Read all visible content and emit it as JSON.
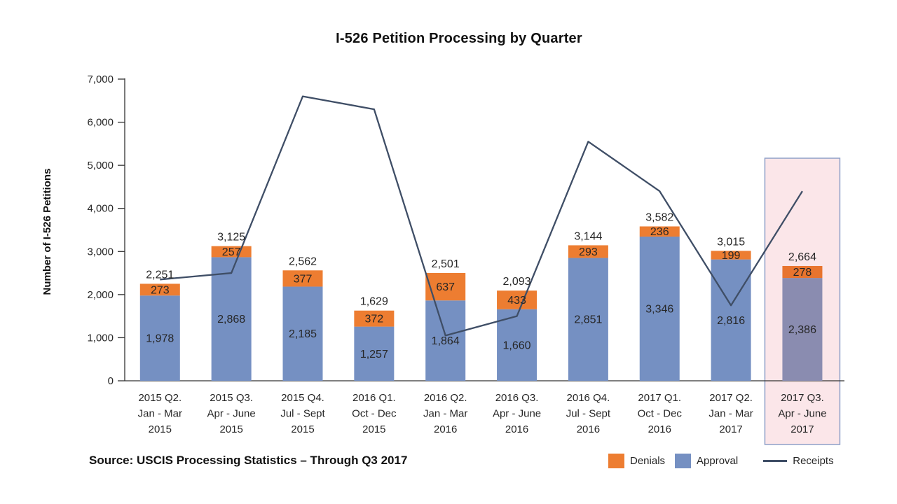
{
  "source_note": "Source: USCIS Processing Statistics – Through Q3 2017",
  "legend": {
    "denials": "Denials",
    "approval": "Approval",
    "receipts": "Receipts"
  },
  "chart_data": {
    "type": "bar",
    "subtype": "stacked-bars-with-line-overlay",
    "title": "I-526 Petition Processing by Quarter",
    "xlabel": "",
    "ylabel": "Number of I-526 Petitions",
    "ylim": [
      0,
      7000
    ],
    "ytick_step": 1000,
    "ytick_labels": [
      "0",
      "1,000",
      "2,000",
      "3,000",
      "4,000",
      "5,000",
      "6,000",
      "7,000"
    ],
    "grid": false,
    "legend_position": "bottom-right",
    "categories": [
      [
        "2015 Q2.",
        "Jan - Mar",
        "2015"
      ],
      [
        "2015 Q3.",
        "Apr - June",
        "2015"
      ],
      [
        "2015 Q4.",
        "Jul - Sept",
        "2015"
      ],
      [
        "2016 Q1.",
        "Oct - Dec",
        "2015"
      ],
      [
        "2016 Q2.",
        "Jan - Mar",
        "2016"
      ],
      [
        "2016 Q3.",
        "Apr - June",
        "2016"
      ],
      [
        "2016 Q4.",
        "Jul - Sept",
        "2016"
      ],
      [
        "2017 Q1.",
        "Oct - Dec",
        "2016"
      ],
      [
        "2017 Q2.",
        "Jan - Mar",
        "2017"
      ],
      [
        "2017 Q3.",
        "Apr - June",
        "2017"
      ]
    ],
    "series": [
      {
        "name": "Approval",
        "render": "bar-stack-bottom",
        "values": [
          1978,
          2868,
          2185,
          1257,
          1864,
          1660,
          2851,
          3346,
          2816,
          2386
        ]
      },
      {
        "name": "Denials",
        "render": "bar-stack-top",
        "values": [
          273,
          257,
          377,
          372,
          637,
          433,
          293,
          236,
          199,
          278
        ]
      },
      {
        "name": "Receipts",
        "render": "line",
        "values_are_estimated_from_pixels": true,
        "values": [
          2350,
          2500,
          6600,
          6300,
          1050,
          1500,
          5550,
          4400,
          1750,
          4400
        ]
      }
    ],
    "stack_totals": [
      2251,
      3125,
      2562,
      1629,
      2501,
      2093,
      3144,
      3582,
      3015,
      2664
    ],
    "highlighted_category_index": 9,
    "colors": {
      "approval": "#7590C2",
      "denials": "#ED7D31",
      "receipts_line": "#3F4E66",
      "approval_highlighted": "#8A8CB0",
      "denials_highlighted": "#E8742E",
      "approval_label_text": "#FFFFFF",
      "approval_label_text_highlighted": "#EBD9DE",
      "value_label_text": "#1A1A1A",
      "highlight_box_fill": "#FBE6E9",
      "highlight_box_border": "#8FA0C8",
      "axis": "#333333"
    }
  }
}
